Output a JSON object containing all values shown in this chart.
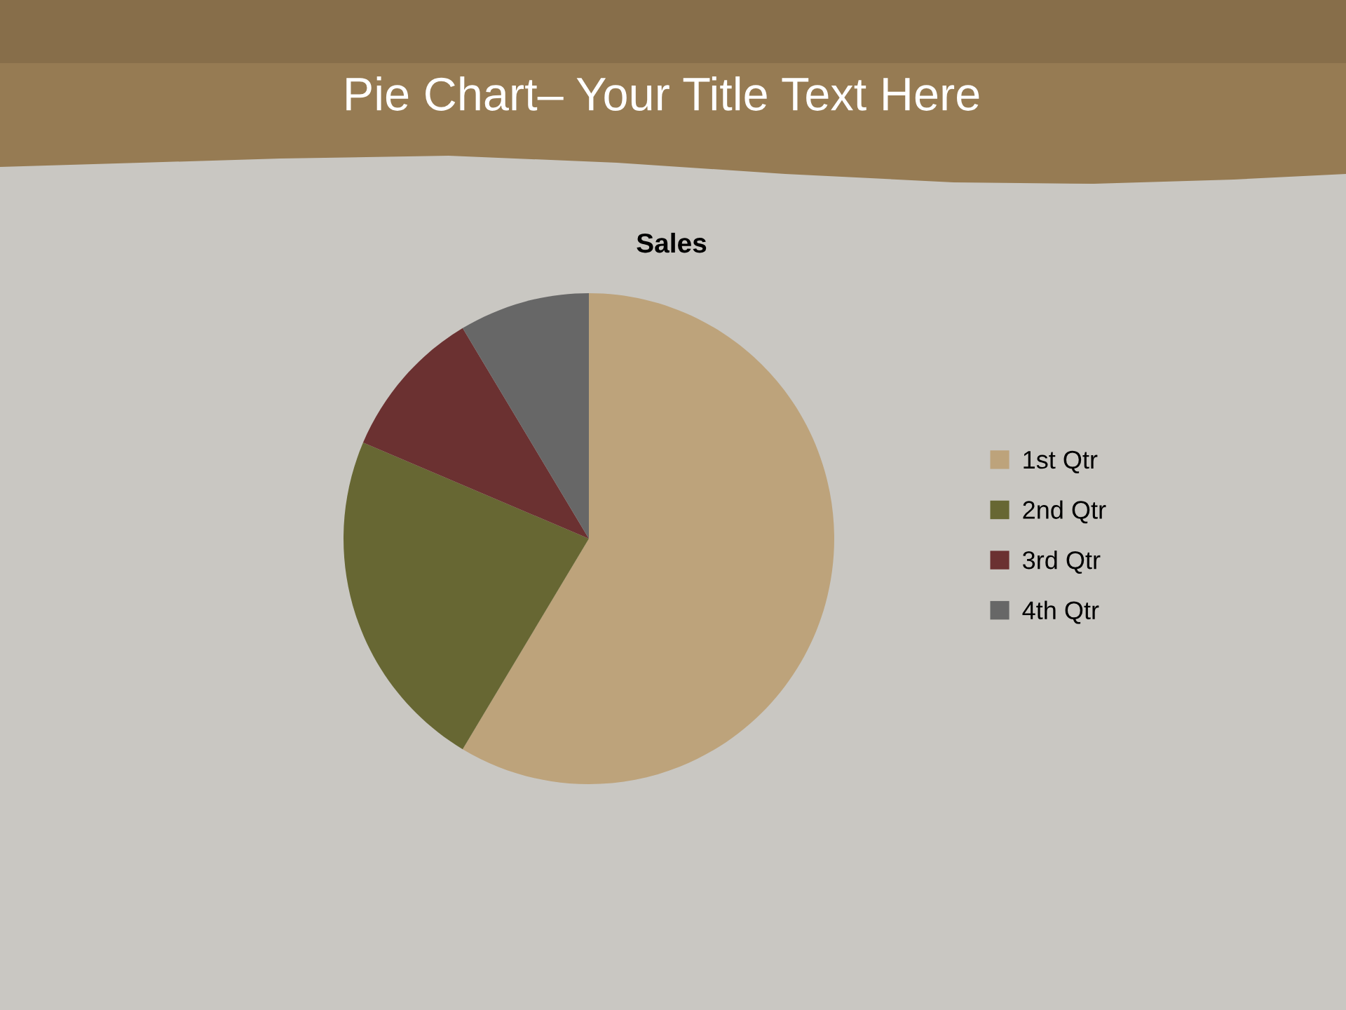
{
  "chart_data": {
    "type": "pie",
    "title": "Pie Chart– Your Title Text Here",
    "subtitle": "Sales",
    "categories": [
      "1st Qtr",
      "2nd Qtr",
      "3rd Qtr",
      "4th Qtr"
    ],
    "values": [
      58.6,
      22.8,
      10.0,
      8.6
    ],
    "colors": [
      "#bda37b",
      "#676733",
      "#6b3131",
      "#676767"
    ],
    "legend": "right"
  }
}
